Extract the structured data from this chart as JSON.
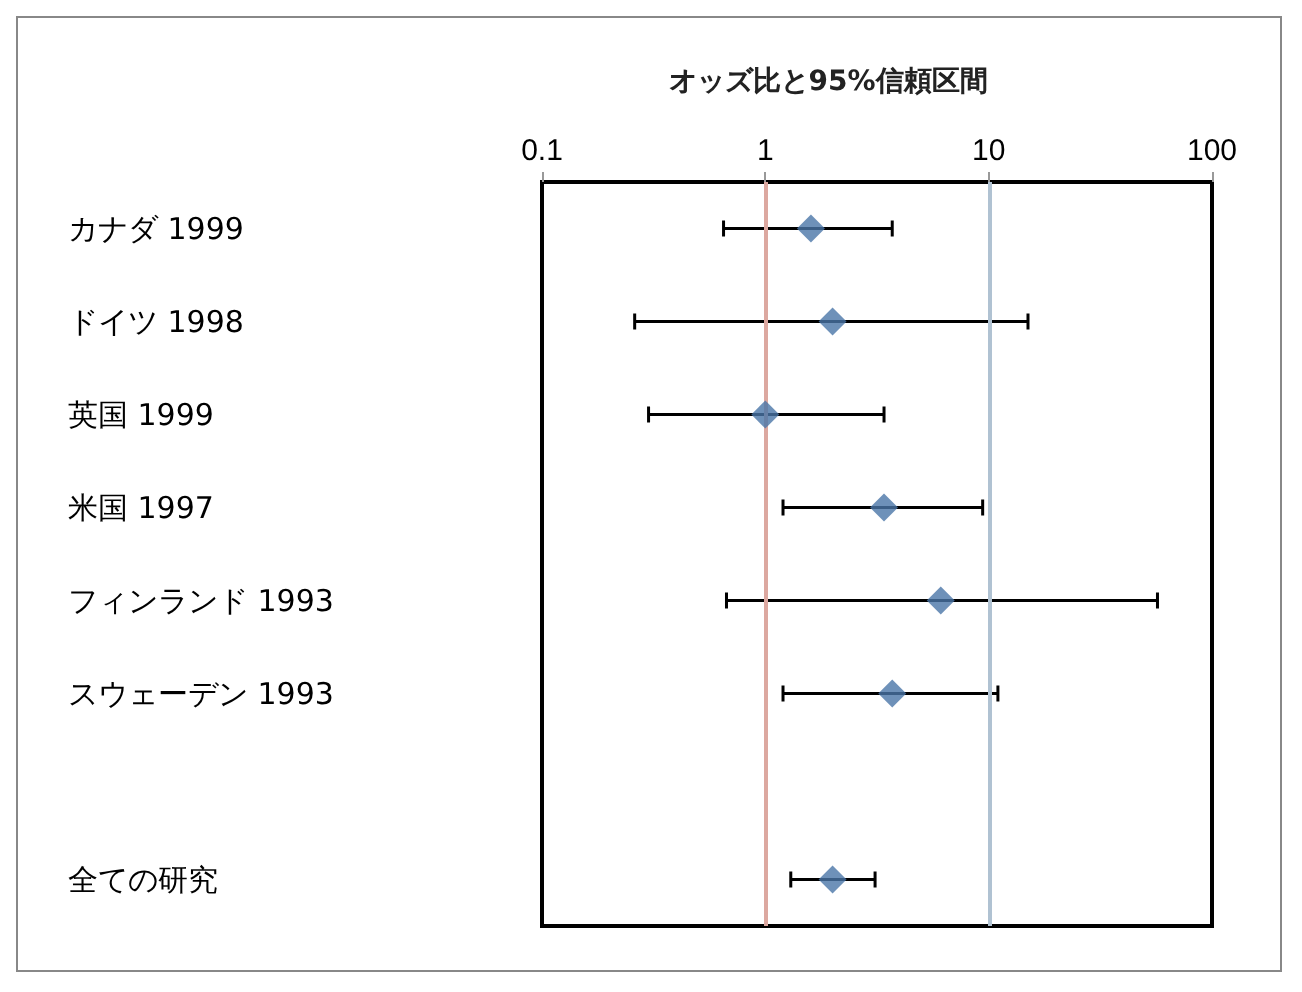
{
  "chart_data": {
    "type": "scatter",
    "title": "オッズ比と95%信頼区間",
    "categories": [
      "カナダ 1999",
      "ドイツ 1998",
      "英国 1999",
      "米国 1997",
      "フィンランド 1993",
      "スウェーデン 1993",
      null,
      "全ての研究"
    ],
    "values": [
      1.6,
      2.0,
      1.0,
      3.4,
      6.1,
      3.7,
      null,
      2.0
    ],
    "errors": [
      [
        0.65,
        3.7
      ],
      [
        0.26,
        15
      ],
      [
        0.3,
        3.4
      ],
      [
        1.2,
        9.4
      ],
      [
        0.67,
        57
      ],
      [
        1.2,
        11
      ],
      null,
      [
        1.3,
        3.1
      ]
    ],
    "color": "#4a76a8",
    "marker": "diamond",
    "log": "x",
    "xlim": [
      0.1,
      100
    ],
    "xticks": [
      0.1,
      1,
      10,
      100
    ],
    "ref_lines": [
      {
        "axis": "x",
        "value": 1,
        "color": "#dca8a0"
      },
      {
        "axis": "x",
        "value": 10,
        "color": "#b0c2d2"
      }
    ],
    "orientation": "horizontal",
    "grid": false
  }
}
